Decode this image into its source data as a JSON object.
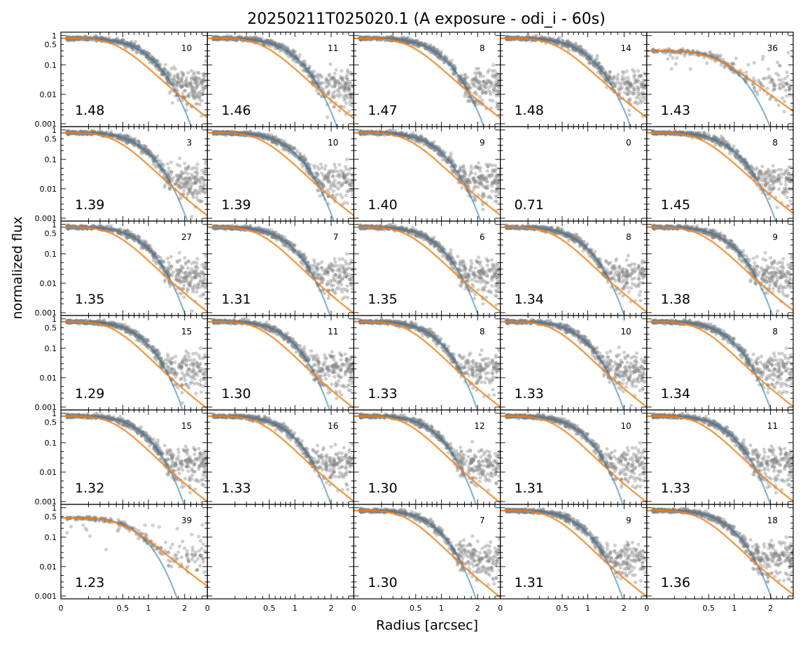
{
  "figure": {
    "title": "20250211T025020.1 (A exposure - odi_i - 60s)",
    "xlabel": "Radius [arcsec]",
    "ylabel": "normalized flux"
  },
  "chart_data": {
    "type": "scatter",
    "title": "20250211T025020.1 (A exposure - odi_i - 60s)",
    "xlabel": "Radius [arcsec]",
    "ylabel": "normalized flux",
    "x_scale": "sqrt",
    "y_scale": "log",
    "xlim": [
      0,
      2.8
    ],
    "ylim": [
      0.0008,
      1.3
    ],
    "xticks": [
      0,
      0.5,
      1,
      2
    ],
    "xtick_labels": [
      "0",
      "0.5",
      "1",
      "2"
    ],
    "yticks": [
      0.001,
      0.01,
      0.1,
      0.5,
      1
    ],
    "ytick_labels": [
      "0.001",
      "0.01",
      "0.1",
      "0.5",
      "1"
    ],
    "grid": false,
    "legend": "none",
    "colors": {
      "points": "#808080",
      "fit_blue": "#1f77b4",
      "fit_orange": "#ff7f0e"
    },
    "grid_layout": {
      "rows": 6,
      "cols": 5
    },
    "panels": [
      {
        "row": 0,
        "col": 0,
        "seeing": "1.48",
        "count": "10",
        "peak": 0.8
      },
      {
        "row": 0,
        "col": 1,
        "seeing": "1.46",
        "count": "11",
        "peak": 0.8
      },
      {
        "row": 0,
        "col": 2,
        "seeing": "1.47",
        "count": "8",
        "peak": 0.8
      },
      {
        "row": 0,
        "col": 3,
        "seeing": "1.48",
        "count": "14",
        "peak": 0.8
      },
      {
        "row": 0,
        "col": 4,
        "seeing": "1.43",
        "count": "36",
        "peak": 0.3
      },
      {
        "row": 1,
        "col": 0,
        "seeing": "1.39",
        "count": "3",
        "peak": 0.8
      },
      {
        "row": 1,
        "col": 1,
        "seeing": "1.39",
        "count": "10",
        "peak": 0.8
      },
      {
        "row": 1,
        "col": 2,
        "seeing": "1.40",
        "count": "9",
        "peak": 0.8
      },
      {
        "row": 1,
        "col": 3,
        "seeing": "0.71",
        "count": "0",
        "peak": null
      },
      {
        "row": 1,
        "col": 4,
        "seeing": "1.45",
        "count": "8",
        "peak": 0.8
      },
      {
        "row": 2,
        "col": 0,
        "seeing": "1.35",
        "count": "27",
        "peak": 0.8
      },
      {
        "row": 2,
        "col": 1,
        "seeing": "1.31",
        "count": "7",
        "peak": 0.8
      },
      {
        "row": 2,
        "col": 2,
        "seeing": "1.35",
        "count": "6",
        "peak": 0.8
      },
      {
        "row": 2,
        "col": 3,
        "seeing": "1.34",
        "count": "8",
        "peak": 0.8
      },
      {
        "row": 2,
        "col": 4,
        "seeing": "1.38",
        "count": "9",
        "peak": 0.8
      },
      {
        "row": 3,
        "col": 0,
        "seeing": "1.29",
        "count": "15",
        "peak": 0.8
      },
      {
        "row": 3,
        "col": 1,
        "seeing": "1.30",
        "count": "11",
        "peak": 0.8
      },
      {
        "row": 3,
        "col": 2,
        "seeing": "1.33",
        "count": "8",
        "peak": 0.8
      },
      {
        "row": 3,
        "col": 3,
        "seeing": "1.33",
        "count": "10",
        "peak": 0.8
      },
      {
        "row": 3,
        "col": 4,
        "seeing": "1.34",
        "count": "8",
        "peak": 0.8
      },
      {
        "row": 4,
        "col": 0,
        "seeing": "1.32",
        "count": "15",
        "peak": 0.8
      },
      {
        "row": 4,
        "col": 1,
        "seeing": "1.33",
        "count": "16",
        "peak": 0.8
      },
      {
        "row": 4,
        "col": 2,
        "seeing": "1.30",
        "count": "12",
        "peak": 0.8
      },
      {
        "row": 4,
        "col": 3,
        "seeing": "1.31",
        "count": "10",
        "peak": 0.8
      },
      {
        "row": 4,
        "col": 4,
        "seeing": "1.33",
        "count": "11",
        "peak": 0.8
      },
      {
        "row": 5,
        "col": 0,
        "seeing": "1.23",
        "count": "39",
        "peak": 0.45
      },
      {
        "row": 5,
        "col": 1,
        "seeing": "",
        "count": "",
        "peak": null
      },
      {
        "row": 5,
        "col": 2,
        "seeing": "1.30",
        "count": "7",
        "peak": 0.8
      },
      {
        "row": 5,
        "col": 3,
        "seeing": "1.31",
        "count": "9",
        "peak": 0.8
      },
      {
        "row": 5,
        "col": 4,
        "seeing": "1.36",
        "count": "18",
        "peak": 0.8
      }
    ]
  }
}
